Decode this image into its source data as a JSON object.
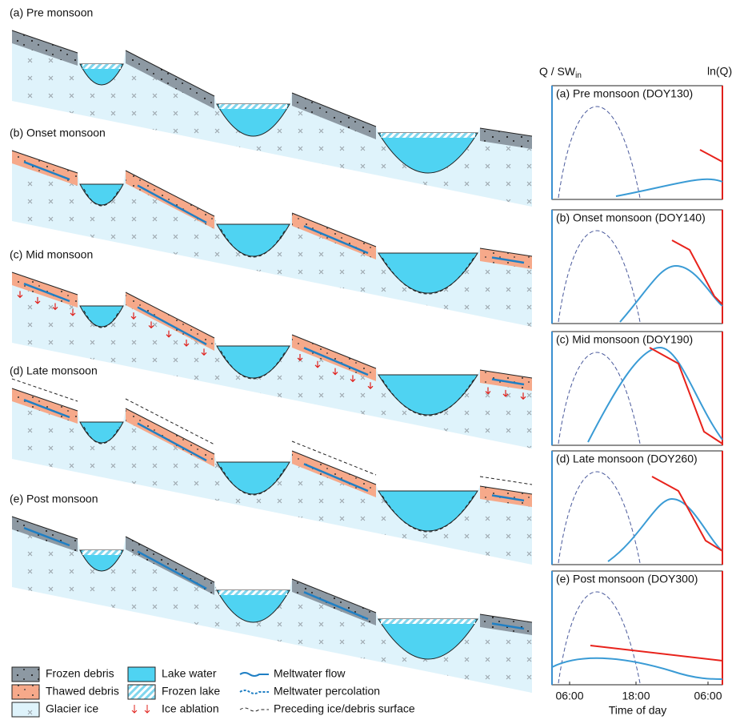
{
  "cross_sections": [
    {
      "label": "(a) Pre monsoon"
    },
    {
      "label": "(b) Onset monsoon"
    },
    {
      "label": "(c) Mid monsoon"
    },
    {
      "label": "(d) Late monsoon"
    },
    {
      "label": "(e) Post monsoon"
    }
  ],
  "charts": [
    {
      "title": "(a) Pre monsoon (DOY130)"
    },
    {
      "title": "(b) Onset monsoon (DOY140)"
    },
    {
      "title": "(c) Mid monsoon (DOY190)"
    },
    {
      "title": "(d) Late monsoon (DOY260)"
    },
    {
      "title": "(e) Post monsoon (DOY300)"
    }
  ],
  "axis": {
    "left_label": {
      "text": "Q / SW",
      "subscript": "in"
    },
    "right_label": "ln(Q)",
    "x_label": "Time of day",
    "x_ticks": [
      "06:00",
      "18:00",
      "06:00"
    ]
  },
  "legend": [
    {
      "label": "Frozen debris"
    },
    {
      "label": "Thawed debris"
    },
    {
      "label": "Glacier ice"
    },
    {
      "label": "Lake water"
    },
    {
      "label": "Frozen lake"
    },
    {
      "label": "Ice ablation"
    },
    {
      "label": "Meltwater flow"
    },
    {
      "label": "Meltwater percolation"
    },
    {
      "label": "Preceding ice/debris surface"
    }
  ]
}
